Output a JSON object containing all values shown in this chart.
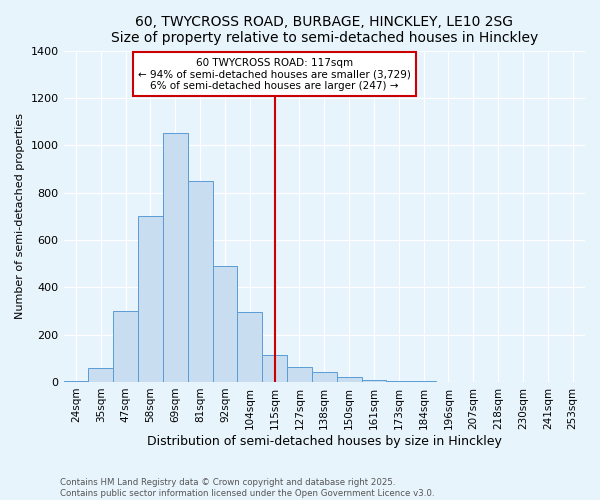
{
  "title": "60, TWYCROSS ROAD, BURBAGE, HINCKLEY, LE10 2SG",
  "subtitle": "Size of property relative to semi-detached houses in Hinckley",
  "xlabel": "Distribution of semi-detached houses by size in Hinckley",
  "ylabel": "Number of semi-detached properties",
  "categories": [
    "24sqm",
    "35sqm",
    "47sqm",
    "58sqm",
    "69sqm",
    "81sqm",
    "92sqm",
    "104sqm",
    "115sqm",
    "127sqm",
    "138sqm",
    "150sqm",
    "161sqm",
    "173sqm",
    "184sqm",
    "196sqm",
    "207sqm",
    "218sqm",
    "230sqm",
    "241sqm",
    "253sqm"
  ],
  "values": [
    5,
    60,
    300,
    700,
    1050,
    850,
    490,
    295,
    115,
    65,
    40,
    20,
    10,
    5,
    2,
    1,
    0,
    0,
    0,
    0,
    0
  ],
  "bar_color": "#c8ddf0",
  "bar_edge_color": "#5b9bd5",
  "property_bin_index": 8,
  "annotation_title": "60 TWYCROSS ROAD: 117sqm",
  "annotation_line1": "← 94% of semi-detached houses are smaller (3,729)",
  "annotation_line2": "6% of semi-detached houses are larger (247) →",
  "vline_color": "#cc0000",
  "annotation_box_color": "#ffffff",
  "annotation_box_edge": "#cc0000",
  "footer_line1": "Contains HM Land Registry data © Crown copyright and database right 2025.",
  "footer_line2": "Contains public sector information licensed under the Open Government Licence v3.0.",
  "bg_color": "#e8f4fc",
  "ylim": [
    0,
    1400
  ],
  "yticks": [
    0,
    200,
    400,
    600,
    800,
    1000,
    1200,
    1400
  ]
}
